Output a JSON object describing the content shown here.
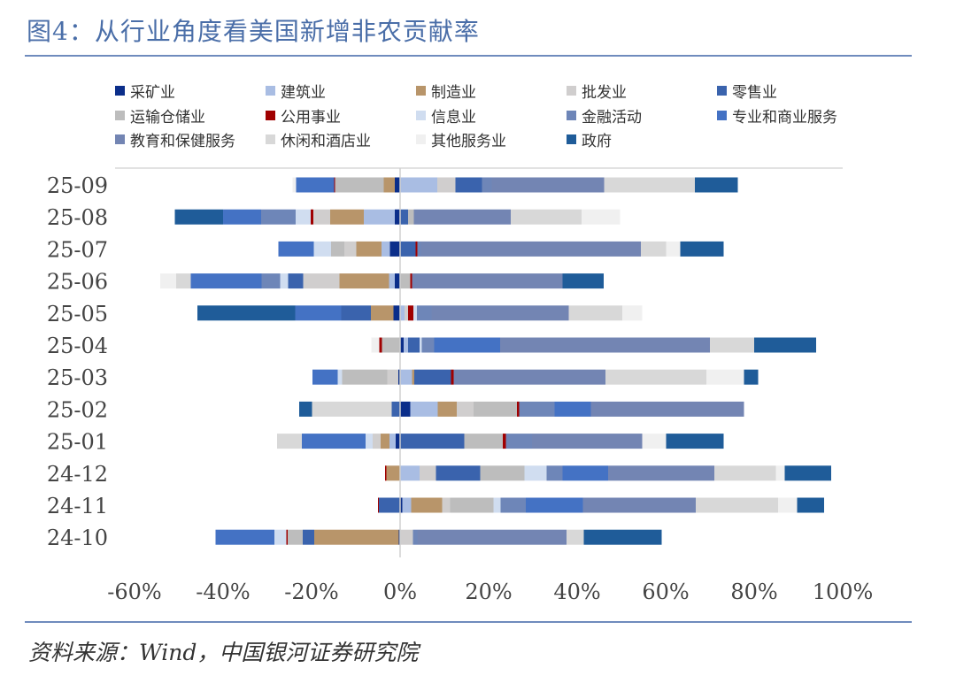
{
  "title": "图4：从行业角度看美国新增非农贡献率",
  "source": "资料来源：Wind，中国银河证券研究院",
  "chart_data": {
    "type": "bar",
    "orientation": "horizontal",
    "stacked": true,
    "categories": [
      "25-09",
      "25-08",
      "25-07",
      "25-06",
      "25-05",
      "25-04",
      "25-03",
      "25-02",
      "25-01",
      "24-12",
      "24-11",
      "24-10"
    ],
    "xlim": [
      -60,
      100
    ],
    "xticks": [
      "-60%",
      "-40%",
      "-20%",
      "0%",
      "20%",
      "40%",
      "60%",
      "80%",
      "100%"
    ],
    "xtick_values": [
      -60,
      -40,
      -20,
      0,
      20,
      40,
      60,
      80,
      100
    ],
    "legend_position": "top",
    "grid": false,
    "series": [
      {
        "name": "采矿业",
        "color": "#0b2e8a",
        "values": [
          -1.2,
          -1.2,
          -2.3,
          -1.2,
          -1.5,
          0.8,
          -0.4,
          2.3,
          -1.0,
          0,
          0.5,
          -0.3
        ]
      },
      {
        "name": "建筑业",
        "color": "#a9bde3",
        "values": [
          8.4,
          -7.0,
          -1.9,
          -1.3,
          1.0,
          1.0,
          2.7,
          6.2,
          -1.4,
          4.4,
          2.0,
          0
        ]
      },
      {
        "name": "制造业",
        "color": "#b8956a",
        "values": [
          -2.5,
          -7.6,
          -5.7,
          -11.2,
          -5.1,
          0,
          0.5,
          4.3,
          -2.0,
          -3.1,
          7.0,
          -19.1
        ]
      },
      {
        "name": "批发业",
        "color": "#d0cece",
        "values": [
          4.1,
          -3.8,
          -2.7,
          -8.2,
          0.8,
          0,
          -2.5,
          3.8,
          -1.8,
          3.7,
          1.8,
          2.9
        ]
      },
      {
        "name": "零售业",
        "color": "#3a63ad",
        "values": [
          6.0,
          1.8,
          3.5,
          -3.4,
          -6.7,
          2.6,
          8.3,
          -1.9,
          14.5,
          10.0,
          -4.8,
          -2.6
        ]
      },
      {
        "name": "运输仓储业",
        "color": "#bdbdbd",
        "values": [
          -11.0,
          1.3,
          -3.0,
          2.3,
          0,
          -4.1,
          -10.2,
          9.8,
          8.7,
          10.0,
          9.8,
          -3.4
        ]
      },
      {
        "name": "公用事业",
        "color": "#a00000",
        "values": [
          -0.2,
          -0.6,
          0.4,
          0.4,
          1.2,
          -0.6,
          0.6,
          0.5,
          0.7,
          -0.3,
          -0.2,
          -0.3
        ]
      },
      {
        "name": "信息业",
        "color": "#d0ddf0",
        "values": [
          0,
          -3.4,
          -3.9,
          -1.8,
          0.8,
          0.5,
          -1.0,
          0,
          -1.6,
          5.0,
          1.6,
          -2.7
        ]
      },
      {
        "name": "金融活动",
        "color": "#6e86b8",
        "values": [
          2.2,
          -7.8,
          0.8,
          -4.2,
          3.3,
          2.8,
          0,
          8.0,
          5.9,
          3.6,
          5.7,
          1.0
        ]
      },
      {
        "name": "专业和商业服务",
        "color": "#4472c4",
        "values": [
          -8.6,
          -8.6,
          -8.0,
          -16.0,
          -10.4,
          14.9,
          -5.7,
          8.2,
          -14.4,
          10.3,
          12.9,
          -13.3
        ]
      },
      {
        "name": "教育和保健服务",
        "color": "#7385b3",
        "values": [
          25.4,
          21.9,
          49.7,
          34.0,
          31.0,
          47.4,
          34.3,
          34.6,
          24.9,
          24.0,
          25.5,
          33.7
        ]
      },
      {
        "name": "休闲和酒店业",
        "color": "#d8d8d8",
        "values": [
          20.5,
          16.0,
          5.7,
          -3.3,
          12.1,
          10.0,
          22.8,
          -18.0,
          -5.6,
          13.9,
          18.6,
          3.9
        ]
      },
      {
        "name": "其他服务业",
        "color": "#f0f0f0",
        "values": [
          -0.8,
          8.7,
          3.2,
          -3.6,
          4.5,
          -1.8,
          8.5,
          0,
          5.4,
          2.0,
          4.3,
          0
        ]
      },
      {
        "name": "政府",
        "color": "#1f5c99",
        "values": [
          9.7,
          -10.9,
          9.8,
          9.3,
          -22.1,
          14.0,
          3.2,
          -2.9,
          13.0,
          10.5,
          6.1,
          17.6
        ]
      }
    ]
  }
}
